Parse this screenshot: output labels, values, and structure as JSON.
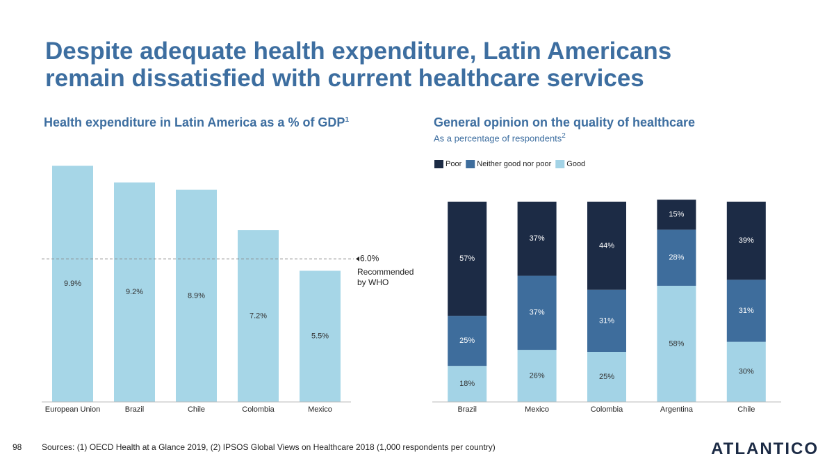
{
  "header": {
    "title": "Despite adequate health expenditure, Latin Americans remain dissatisfied with current healthcare services"
  },
  "chart_data": [
    {
      "type": "bar",
      "title": "Health expenditure in Latin America as a % of GDP",
      "title_note": "1",
      "categories": [
        "European Union",
        "Brazil",
        "Chile",
        "Colombia",
        "Mexico"
      ],
      "values": [
        9.9,
        9.2,
        8.9,
        7.2,
        5.5
      ],
      "value_labels": [
        "9.9%",
        "9.2%",
        "8.9%",
        "7.2%",
        "5.5%"
      ],
      "color": "#a6d6e7",
      "ylim": [
        0,
        10
      ],
      "reference_line": {
        "value": 6.0,
        "label": "6.0%",
        "annotation": "Recommended by WHO",
        "color": "#888888"
      }
    },
    {
      "type": "stacked_bar",
      "title": "General opinion on the quality of healthcare",
      "subtitle": "As a percentage of respondents",
      "subtitle_note": "2",
      "categories": [
        "Brazil",
        "Mexico",
        "Colombia",
        "Argentina",
        "Chile"
      ],
      "series": [
        {
          "name": "Poor",
          "color": "#1c2b45",
          "label_color": "#ffffff",
          "values": [
            57,
            37,
            44,
            15,
            39
          ],
          "value_labels": [
            "57%",
            "37%",
            "44%",
            "15%",
            "39%"
          ]
        },
        {
          "name": "Neither good nor poor",
          "color": "#3e6d9c",
          "label_color": "#ffffff",
          "values": [
            25,
            37,
            31,
            28,
            31
          ],
          "value_labels": [
            "25%",
            "37%",
            "31%",
            "28%",
            "31%"
          ]
        },
        {
          "name": "Good",
          "color": "#a3d3e6",
          "label_color": "#333333",
          "values": [
            18,
            26,
            25,
            58,
            30
          ],
          "value_labels": [
            "18%",
            "26%",
            "25%",
            "58%",
            "30%"
          ]
        }
      ],
      "ylim": [
        0,
        100
      ],
      "legend": "top-left"
    }
  ],
  "footer": {
    "page_number": "98",
    "sources": "Sources: (1) OECD Health at a Glance 2019, (2) IPSOS Global Views on Healthcare 2018 (1,000 respondents per country)",
    "logo": "ATLANTICO"
  }
}
